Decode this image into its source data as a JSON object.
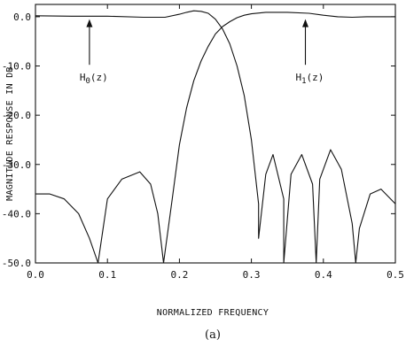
{
  "chart_data": {
    "type": "line",
    "xlabel": "NORMALIZED FREQUENCY",
    "ylabel": "MAGNITUDE RESPONSE IN DB",
    "caption": "(a)",
    "xlim": [
      0.0,
      0.5
    ],
    "ylim": [
      -50.0,
      2.5
    ],
    "x_ticks": [
      0.0,
      0.1,
      0.2,
      0.3,
      0.4,
      0.5
    ],
    "x_tick_labels": [
      "0.0",
      "0.1",
      "0.2",
      "0.3",
      "0.4",
      "0.5"
    ],
    "y_ticks": [
      0,
      -10,
      -20,
      -30,
      -40,
      -50
    ],
    "y_tick_labels": [
      "0.0",
      "-10.0",
      "-20.0",
      "-30.0",
      "-40.0",
      "-50.0"
    ],
    "grid": false,
    "annotations": [
      {
        "label": "H",
        "sub": "0",
        "suffix": "(z)",
        "arrow_x": 0.075,
        "arrow_y": -0.5,
        "label_x": 0.07,
        "label_y": -13.0
      },
      {
        "label": "H",
        "sub": "1",
        "suffix": "(z)",
        "arrow_x": 0.375,
        "arrow_y": -0.5,
        "label_x": 0.37,
        "label_y": -13.0
      }
    ],
    "series": [
      {
        "id": "h0",
        "x": [
          0.0,
          0.05,
          0.1,
          0.15,
          0.18,
          0.2,
          0.21,
          0.22,
          0.23,
          0.24,
          0.25,
          0.26,
          0.27,
          0.28,
          0.29,
          0.3,
          0.31,
          0.32,
          0.33,
          0.345,
          0.355,
          0.37,
          0.385,
          0.395,
          0.41,
          0.425,
          0.44,
          0.45,
          0.465,
          0.48,
          0.5
        ],
        "y": [
          0.2,
          0.1,
          0.1,
          -0.1,
          -0.1,
          0.5,
          0.9,
          1.2,
          1.1,
          0.7,
          -0.5,
          -2.5,
          -5.5,
          -10.0,
          -16.0,
          -25.0,
          -38.0,
          -32.0,
          -28.0,
          -37.0,
          -32.0,
          -28.0,
          -34.0,
          -33.0,
          -27.0,
          -31.0,
          -42.0,
          -43.0,
          -36.0,
          -35.0,
          -38.0
        ],
        "nulls": [
          [
            0.31,
            -45.0
          ],
          [
            0.345,
            -50.0
          ],
          [
            0.39,
            -50.0
          ],
          [
            0.445,
            -50.0
          ]
        ]
      },
      {
        "id": "h1",
        "x": [
          0.0,
          0.02,
          0.04,
          0.06,
          0.075,
          0.087,
          0.1,
          0.12,
          0.145,
          0.16,
          0.17,
          0.178,
          0.19,
          0.2,
          0.21,
          0.22,
          0.23,
          0.24,
          0.25,
          0.26,
          0.27,
          0.28,
          0.29,
          0.3,
          0.32,
          0.35,
          0.38,
          0.4,
          0.42,
          0.44,
          0.46,
          0.48,
          0.5
        ],
        "y": [
          -36.0,
          -36.0,
          -37.0,
          -40.0,
          -45.0,
          -50.0,
          -37.0,
          -33.0,
          -31.5,
          -34.0,
          -40.0,
          -50.0,
          -37.0,
          -26.0,
          -18.5,
          -13.0,
          -9.0,
          -6.0,
          -3.5,
          -2.0,
          -1.0,
          -0.2,
          0.3,
          0.6,
          0.9,
          0.9,
          0.7,
          0.3,
          0.0,
          -0.1,
          0.0,
          0.0,
          0.0
        ]
      }
    ]
  }
}
